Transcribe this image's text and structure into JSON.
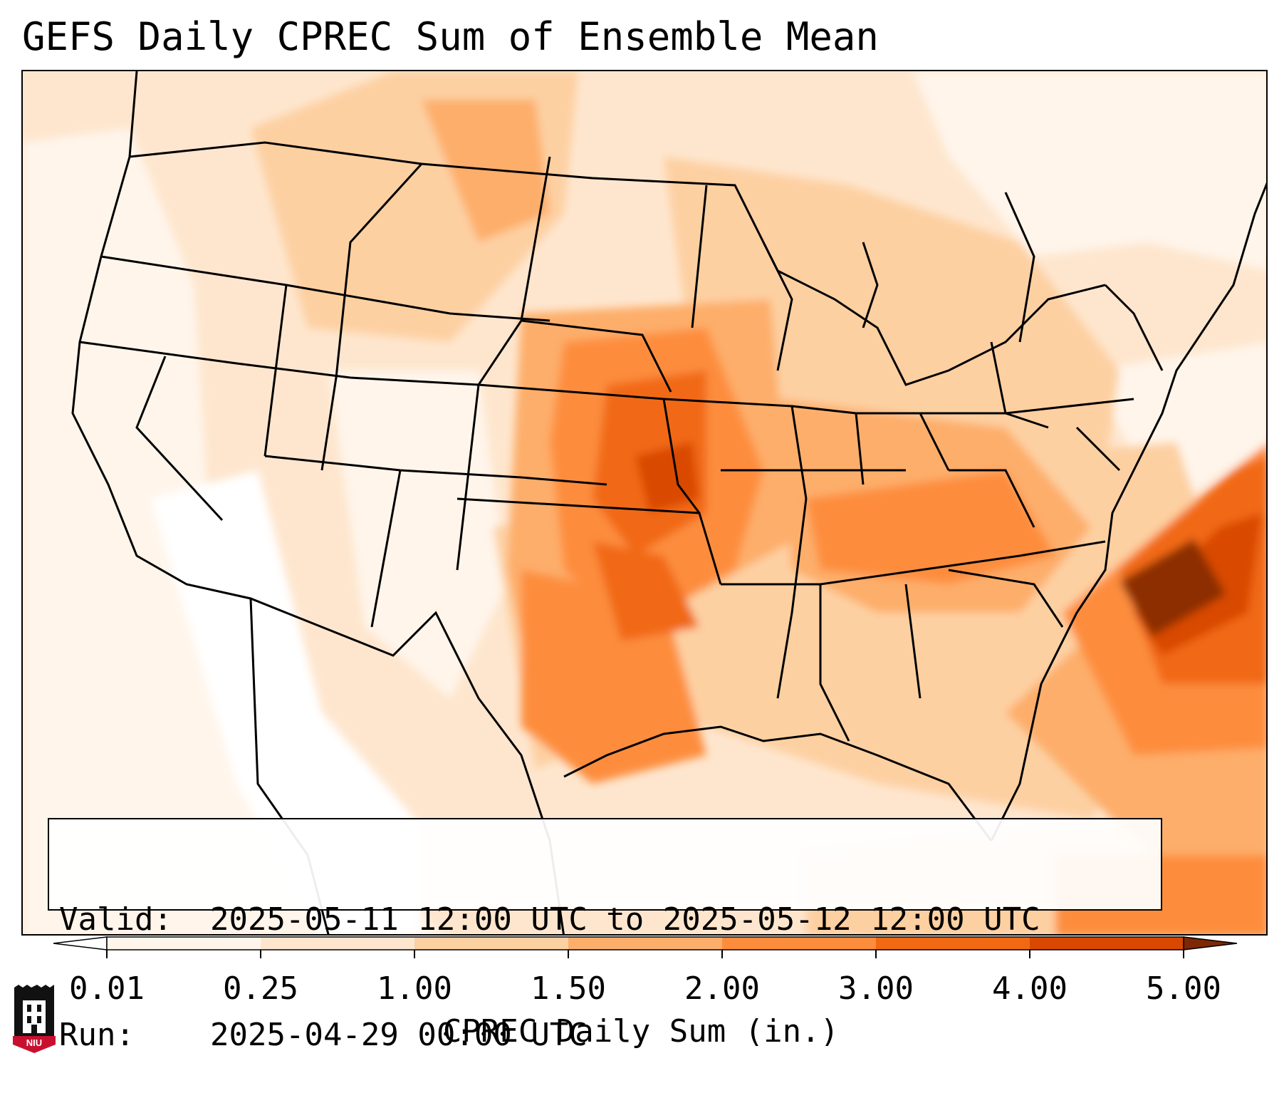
{
  "title": "GEFS Daily CPREC Sum of Ensemble Mean",
  "info": {
    "valid_key": "Valid:",
    "valid_value": "2025-05-11 12:00 UTC to 2025-05-12 12:00 UTC",
    "run_key": "Run:",
    "run_value": "2025-04-29 00:00 UTC"
  },
  "colorbar": {
    "label": "CPREC Daily Sum (in.)",
    "ticks": [
      "0.01",
      "0.25",
      "1.00",
      "1.50",
      "2.00",
      "3.00",
      "4.00",
      "5.00"
    ],
    "colors": [
      "#fff5eb",
      "#fee6ce",
      "#fdd0a2",
      "#fdae6b",
      "#fd8d3c",
      "#f16913",
      "#d94801",
      "#8c2d04"
    ],
    "under_color": "#ffffff",
    "over_color": "#7f2704",
    "extend": "both"
  },
  "logo": {
    "text": "NIU",
    "icon": "niu-tower-icon"
  }
}
